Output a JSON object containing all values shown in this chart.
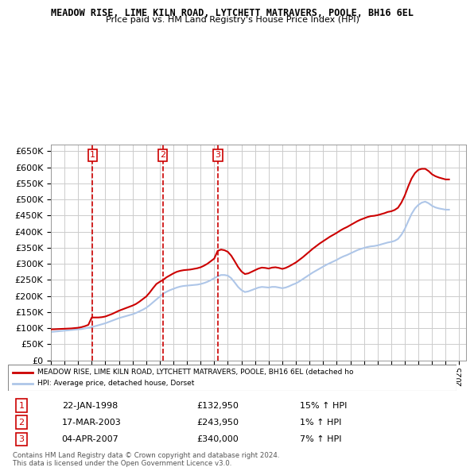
{
  "title": "MEADOW RISE, LIME KILN ROAD, LYTCHETT MATRAVERS, POOLE, BH16 6EL",
  "subtitle": "Price paid vs. HM Land Registry's House Price Index (HPI)",
  "ylim": [
    0,
    670000
  ],
  "yticks": [
    0,
    50000,
    100000,
    150000,
    200000,
    250000,
    300000,
    350000,
    400000,
    450000,
    500000,
    550000,
    600000,
    650000
  ],
  "xlim_start": 1995.0,
  "xlim_end": 2025.5,
  "bg_color": "#ffffff",
  "grid_color": "#cccccc",
  "hpi_color": "#aec6e8",
  "price_color": "#cc0000",
  "sale_marker_color": "#cc0000",
  "legend_line1": "MEADOW RISE, LIME KILN ROAD, LYTCHETT MATRAVERS, POOLE, BH16 6EL (detached ho",
  "legend_line2": "HPI: Average price, detached house, Dorset",
  "sales": [
    {
      "label": "1",
      "date": 1998.06,
      "price": 132950,
      "pct": "15%",
      "date_str": "22-JAN-1998"
    },
    {
      "label": "2",
      "date": 2003.21,
      "price": 243950,
      "pct": "1%",
      "date_str": "17-MAR-2003"
    },
    {
      "label": "3",
      "date": 2007.26,
      "price": 340000,
      "pct": "7%",
      "date_str": "04-APR-2007"
    }
  ],
  "footer": "Contains HM Land Registry data © Crown copyright and database right 2024.\nThis data is licensed under the Open Government Licence v3.0.",
  "hpi_x": [
    1995.0,
    1995.25,
    1995.5,
    1995.75,
    1996.0,
    1996.25,
    1996.5,
    1996.75,
    1997.0,
    1997.25,
    1997.5,
    1997.75,
    1998.0,
    1998.25,
    1998.5,
    1998.75,
    1999.0,
    1999.25,
    1999.5,
    1999.75,
    2000.0,
    2000.25,
    2000.5,
    2000.75,
    2001.0,
    2001.25,
    2001.5,
    2001.75,
    2002.0,
    2002.25,
    2002.5,
    2002.75,
    2003.0,
    2003.25,
    2003.5,
    2003.75,
    2004.0,
    2004.25,
    2004.5,
    2004.75,
    2005.0,
    2005.25,
    2005.5,
    2005.75,
    2006.0,
    2006.25,
    2006.5,
    2006.75,
    2007.0,
    2007.25,
    2007.5,
    2007.75,
    2008.0,
    2008.25,
    2008.5,
    2008.75,
    2009.0,
    2009.25,
    2009.5,
    2009.75,
    2010.0,
    2010.25,
    2010.5,
    2010.75,
    2011.0,
    2011.25,
    2011.5,
    2011.75,
    2012.0,
    2012.25,
    2012.5,
    2012.75,
    2013.0,
    2013.25,
    2013.5,
    2013.75,
    2014.0,
    2014.25,
    2014.5,
    2014.75,
    2015.0,
    2015.25,
    2015.5,
    2015.75,
    2016.0,
    2016.25,
    2016.5,
    2016.75,
    2017.0,
    2017.25,
    2017.5,
    2017.75,
    2018.0,
    2018.25,
    2018.5,
    2018.75,
    2019.0,
    2019.25,
    2019.5,
    2019.75,
    2020.0,
    2020.25,
    2020.5,
    2020.75,
    2021.0,
    2021.25,
    2021.5,
    2021.75,
    2022.0,
    2022.25,
    2022.5,
    2022.75,
    2023.0,
    2023.25,
    2023.5,
    2023.75,
    2024.0,
    2024.25
  ],
  "hpi_y": [
    88000,
    89000,
    90000,
    91000,
    92000,
    93000,
    94000,
    95000,
    96000,
    97000,
    99000,
    101000,
    103000,
    106000,
    109000,
    112000,
    115000,
    119000,
    123000,
    127000,
    131000,
    134000,
    137000,
    140000,
    143000,
    147000,
    152000,
    157000,
    163000,
    171000,
    180000,
    189000,
    198000,
    207000,
    213000,
    218000,
    222000,
    226000,
    229000,
    231000,
    232000,
    233000,
    234000,
    235000,
    237000,
    240000,
    244000,
    249000,
    255000,
    261000,
    265000,
    265000,
    263000,
    255000,
    242000,
    228000,
    218000,
    212000,
    214000,
    218000,
    222000,
    226000,
    228000,
    227000,
    226000,
    228000,
    228000,
    226000,
    224000,
    226000,
    230000,
    235000,
    239000,
    245000,
    252000,
    259000,
    266000,
    273000,
    279000,
    285000,
    291000,
    297000,
    302000,
    307000,
    312000,
    318000,
    323000,
    327000,
    332000,
    337000,
    342000,
    346000,
    349000,
    352000,
    354000,
    355000,
    357000,
    360000,
    363000,
    366000,
    368000,
    371000,
    377000,
    390000,
    408000,
    432000,
    455000,
    472000,
    483000,
    490000,
    493000,
    488000,
    480000,
    475000,
    472000,
    470000,
    468000,
    468000
  ],
  "price_x": [
    1995.0,
    1995.25,
    1995.5,
    1995.75,
    1996.0,
    1996.25,
    1996.5,
    1996.75,
    1997.0,
    1997.25,
    1997.5,
    1997.75,
    1998.0,
    1998.25,
    1998.5,
    1998.75,
    1999.0,
    1999.25,
    1999.5,
    1999.75,
    2000.0,
    2000.25,
    2000.5,
    2000.75,
    2001.0,
    2001.25,
    2001.5,
    2001.75,
    2002.0,
    2002.25,
    2002.5,
    2002.75,
    2003.0,
    2003.25,
    2003.5,
    2003.75,
    2004.0,
    2004.25,
    2004.5,
    2004.75,
    2005.0,
    2005.25,
    2005.5,
    2005.75,
    2006.0,
    2006.25,
    2006.5,
    2006.75,
    2007.0,
    2007.25,
    2007.5,
    2007.75,
    2008.0,
    2008.25,
    2008.5,
    2008.75,
    2009.0,
    2009.25,
    2009.5,
    2009.75,
    2010.0,
    2010.25,
    2010.5,
    2010.75,
    2011.0,
    2011.25,
    2011.5,
    2011.75,
    2012.0,
    2012.25,
    2012.5,
    2012.75,
    2013.0,
    2013.25,
    2013.5,
    2013.75,
    2014.0,
    2014.25,
    2014.5,
    2014.75,
    2015.0,
    2015.25,
    2015.5,
    2015.75,
    2016.0,
    2016.25,
    2016.5,
    2016.75,
    2017.0,
    2017.25,
    2017.5,
    2017.75,
    2018.0,
    2018.25,
    2018.5,
    2018.75,
    2019.0,
    2019.25,
    2019.5,
    2019.75,
    2020.0,
    2020.25,
    2020.5,
    2020.75,
    2021.0,
    2021.25,
    2021.5,
    2021.75,
    2022.0,
    2022.25,
    2022.5,
    2022.75,
    2023.0,
    2023.25,
    2023.5,
    2023.75,
    2024.0,
    2024.25
  ],
  "price_y": [
    96000,
    96500,
    97000,
    97500,
    98000,
    98500,
    99000,
    100000,
    101000,
    103000,
    106000,
    110000,
    132950,
    132950,
    133000,
    134000,
    136000,
    140000,
    144000,
    149000,
    154000,
    158000,
    162000,
    166000,
    170000,
    175000,
    182000,
    190000,
    198000,
    210000,
    224000,
    237000,
    243950,
    250000,
    258000,
    264000,
    270000,
    275000,
    278000,
    280000,
    281000,
    282000,
    284000,
    286000,
    289000,
    294000,
    300000,
    308000,
    316000,
    340000,
    344000,
    342000,
    337000,
    325000,
    308000,
    290000,
    276000,
    268000,
    270000,
    275000,
    280000,
    285000,
    288000,
    287000,
    285000,
    288000,
    289000,
    287000,
    284000,
    287000,
    292000,
    298000,
    304000,
    312000,
    320000,
    329000,
    338000,
    347000,
    355000,
    363000,
    370000,
    377000,
    384000,
    390000,
    396000,
    403000,
    409000,
    414000,
    420000,
    426000,
    432000,
    437000,
    441000,
    445000,
    448000,
    449000,
    451000,
    454000,
    457000,
    461000,
    463000,
    467000,
    474000,
    490000,
    512000,
    540000,
    565000,
    582000,
    592000,
    595000,
    595000,
    588000,
    578000,
    572000,
    568000,
    565000,
    562000,
    562000
  ]
}
